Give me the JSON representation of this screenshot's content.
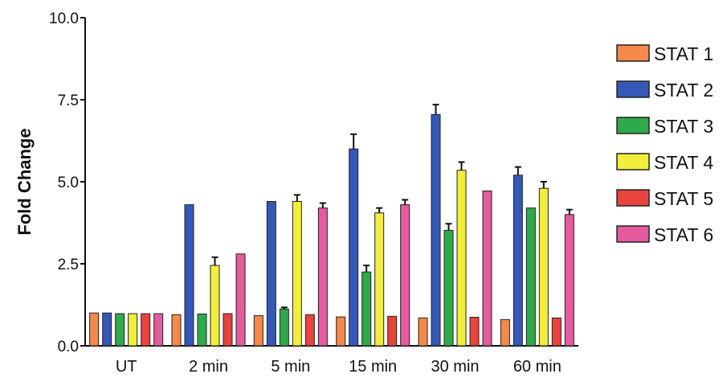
{
  "chart_data": {
    "type": "bar",
    "title": "",
    "xlabel": "",
    "ylabel": "Fold Change",
    "ylim": [
      0,
      10
    ],
    "yticks": [
      "0.0",
      "2.5",
      "5.0",
      "7.5",
      "10.0"
    ],
    "categories": [
      "UT",
      "2 min",
      "5 min",
      "15 min",
      "30 min",
      "60 min"
    ],
    "legend_position": "right",
    "grid": false,
    "series": [
      {
        "name": "STAT 1",
        "color": "#f4894a",
        "values": [
          1.0,
          0.95,
          0.92,
          0.88,
          0.85,
          0.8
        ],
        "errors": [
          0,
          0,
          0,
          0,
          0,
          0
        ]
      },
      {
        "name": "STAT 2",
        "color": "#3558b8",
        "values": [
          1.0,
          4.3,
          4.4,
          6.0,
          7.05,
          5.2
        ],
        "errors": [
          0,
          0,
          0,
          0.45,
          0.3,
          0.25
        ]
      },
      {
        "name": "STAT 3",
        "color": "#2faa4a",
        "values": [
          0.98,
          0.97,
          1.12,
          2.25,
          3.52,
          4.2
        ],
        "errors": [
          0,
          0,
          0.05,
          0.2,
          0.2,
          0
        ]
      },
      {
        "name": "STAT 4",
        "color": "#f1ee3a",
        "values": [
          0.98,
          2.45,
          4.4,
          4.05,
          5.35,
          4.8
        ],
        "errors": [
          0,
          0.25,
          0.2,
          0.15,
          0.25,
          0.2
        ]
      },
      {
        "name": "STAT 5",
        "color": "#e8433c",
        "values": [
          0.98,
          0.98,
          0.95,
          0.9,
          0.87,
          0.85
        ],
        "errors": [
          0,
          0,
          0,
          0,
          0,
          0
        ]
      },
      {
        "name": "STAT 6",
        "color": "#e65a9e",
        "values": [
          0.98,
          2.8,
          4.2,
          4.3,
          4.72,
          4.0
        ],
        "errors": [
          0,
          0,
          0.15,
          0.15,
          0,
          0.15
        ]
      }
    ]
  }
}
